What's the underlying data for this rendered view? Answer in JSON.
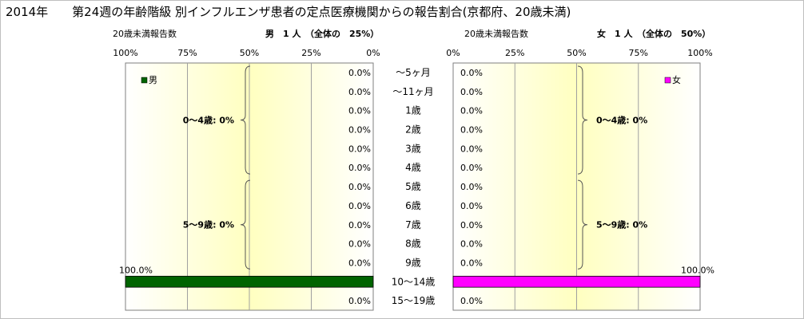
{
  "chart_data": {
    "type": "bar",
    "title": "2014年　　第24週の年齢階級 別インフルエンザ患者の定点医療機関からの報告割合(京都府、20歳未満)",
    "categories": [
      "～5ヶ月",
      "～11ヶ月",
      "1歳",
      "2歳",
      "3歳",
      "4歳",
      "5歳",
      "6歳",
      "7歳",
      "8歳",
      "9歳",
      "10～14歳",
      "15～19歳"
    ],
    "xlim": [
      0,
      100
    ],
    "xunit": "%",
    "tick_values": [
      100,
      75,
      50,
      25,
      0
    ],
    "tick_labels_left": [
      "100%",
      "75%",
      "50%",
      "25%",
      "0%"
    ],
    "tick_labels_right": [
      "0%",
      "25%",
      "50%",
      "75%",
      "100%"
    ],
    "grid": true,
    "series": [
      {
        "name": "男",
        "side": "left",
        "color": "#006400",
        "values": [
          0,
          0,
          0,
          0,
          0,
          0,
          0,
          0,
          0,
          0,
          0,
          100,
          0
        ],
        "value_labels": [
          "0.0%",
          "0.0%",
          "0.0%",
          "0.0%",
          "0.0%",
          "0.0%",
          "0.0%",
          "0.0%",
          "0.0%",
          "0.0%",
          "0.0%",
          "100.0%",
          "0.0%"
        ],
        "header_left": "20歳未満報告数",
        "header_right": "男　1 人　（全体の　25%）",
        "groups": [
          {
            "label": "0～4歳: 0%",
            "from": 0,
            "to": 5
          },
          {
            "label": "5～9歳: 0%",
            "from": 6,
            "to": 10
          }
        ]
      },
      {
        "name": "女",
        "side": "right",
        "color": "#ff00ff",
        "values": [
          0,
          0,
          0,
          0,
          0,
          0,
          0,
          0,
          0,
          0,
          0,
          100,
          0
        ],
        "value_labels": [
          "0.0%",
          "0.0%",
          "0.0%",
          "0.0%",
          "0.0%",
          "0.0%",
          "0.0%",
          "0.0%",
          "0.0%",
          "0.0%",
          "0.0%",
          "100.0%",
          "0.0%"
        ],
        "header_left": "20歳未満報告数",
        "header_right": "女　1 人　（全体の　50%）",
        "groups": [
          {
            "label": "0～4歳: 0%",
            "from": 0,
            "to": 5
          },
          {
            "label": "5～9歳: 0%",
            "from": 6,
            "to": 10
          }
        ]
      }
    ],
    "colors": {
      "plot_gradient_edge": "#ffffff",
      "plot_gradient_center": "#ffffc0",
      "grid": "#a0a0a0",
      "bracket": "#555555"
    }
  }
}
